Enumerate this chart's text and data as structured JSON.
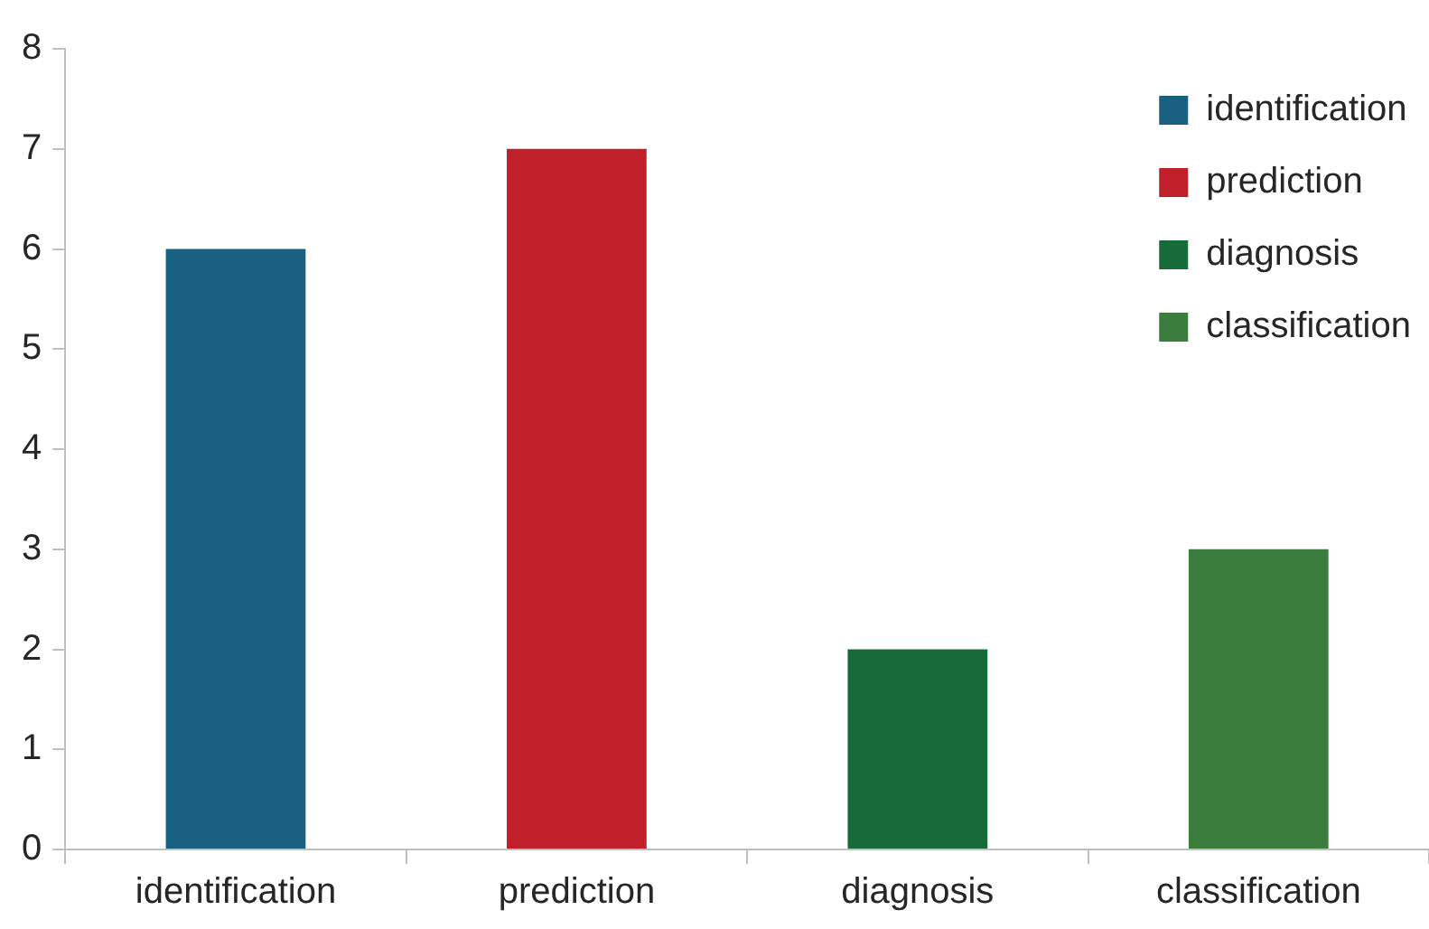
{
  "chart_data": {
    "type": "bar",
    "categories": [
      "identification",
      "prediction",
      "diagnosis",
      "classification"
    ],
    "series": [
      {
        "name": "identification",
        "color": "#1a6080",
        "values": [
          6,
          null,
          null,
          null
        ]
      },
      {
        "name": "prediction",
        "color": "#c0202a",
        "values": [
          null,
          7,
          null,
          null
        ]
      },
      {
        "name": "diagnosis",
        "color": "#176b3a",
        "values": [
          null,
          null,
          2,
          null
        ]
      },
      {
        "name": "classification",
        "color": "#3a7d3c",
        "values": [
          null,
          null,
          null,
          3
        ]
      }
    ],
    "ylim": [
      0,
      8
    ],
    "yticks": [
      0,
      1,
      2,
      3,
      4,
      5,
      6,
      7,
      8
    ],
    "grid": false,
    "legend": "top right"
  }
}
